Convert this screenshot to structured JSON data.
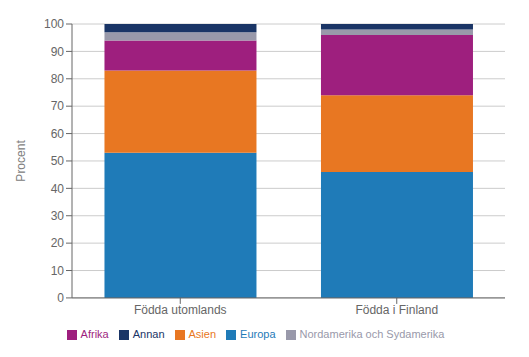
{
  "chart_data": {
    "type": "bar",
    "stacked": true,
    "categories": [
      "Födda utomlands",
      "Födda i Finland"
    ],
    "series": [
      {
        "name": "Europa",
        "color": "#1f7bb8",
        "values": [
          53,
          46
        ]
      },
      {
        "name": "Asien",
        "color": "#e87722",
        "values": [
          30,
          28
        ]
      },
      {
        "name": "Afrika",
        "color": "#9e1f7e",
        "values": [
          11,
          22
        ]
      },
      {
        "name": "Nordamerika och Sydamerika",
        "color": "#9999aa",
        "values": [
          3,
          2
        ]
      },
      {
        "name": "Annan",
        "color": "#1a3566",
        "values": [
          3,
          2
        ]
      }
    ],
    "ylabel": "Procent",
    "ylim": [
      0,
      100
    ],
    "yticks": [
      0,
      10,
      20,
      30,
      40,
      50,
      60,
      70,
      80,
      90,
      100
    ],
    "grid": true,
    "legend": "bottom"
  }
}
